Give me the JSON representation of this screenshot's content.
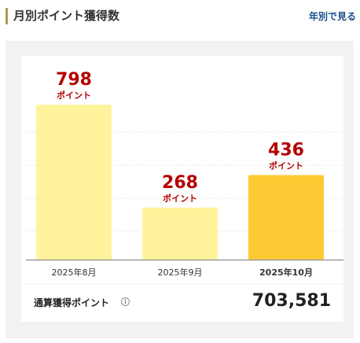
{
  "header": {
    "title": "月別ポイント獲得数",
    "yearly_link": "年別で見る"
  },
  "colors": {
    "accent": "#b09a56",
    "bar_past": "#fff49b",
    "bar_current": "#ffc933",
    "value_red": "#b40000",
    "link_blue": "#1a4f8c"
  },
  "chart_data": {
    "type": "bar",
    "categories": [
      "2025年8月",
      "2025年9月",
      "2025年10月"
    ],
    "values": [
      798,
      268,
      436
    ],
    "value_labels": [
      "798",
      "268",
      "436"
    ],
    "unit_label": "ポイント",
    "highlight_index": 2,
    "ylim": [
      0,
      900
    ],
    "grid": true,
    "title": "",
    "xlabel": "",
    "ylabel": ""
  },
  "total": {
    "label": "通算獲得ポイント",
    "info_icon": "info-icon",
    "value": "703,581"
  }
}
